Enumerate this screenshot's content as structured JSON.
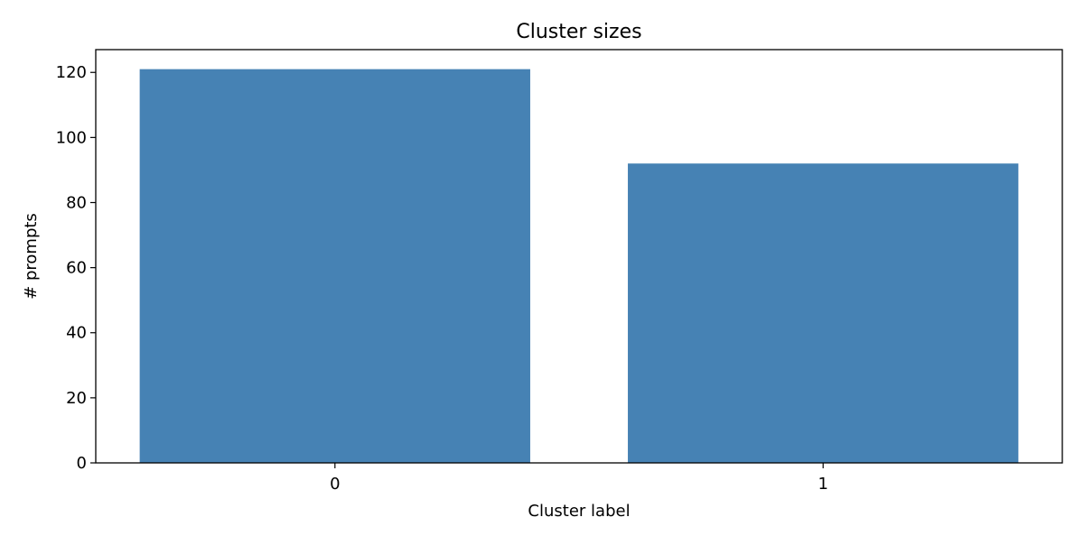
{
  "chart_data": {
    "type": "bar",
    "title": "Cluster sizes",
    "xlabel": "Cluster label",
    "ylabel": "# prompts",
    "categories": [
      "0",
      "1"
    ],
    "values": [
      121,
      92
    ],
    "ylim": [
      0,
      127
    ],
    "yticks": [
      0,
      20,
      40,
      60,
      80,
      100,
      120
    ],
    "grid": false,
    "bar_color": "#4682b4"
  }
}
